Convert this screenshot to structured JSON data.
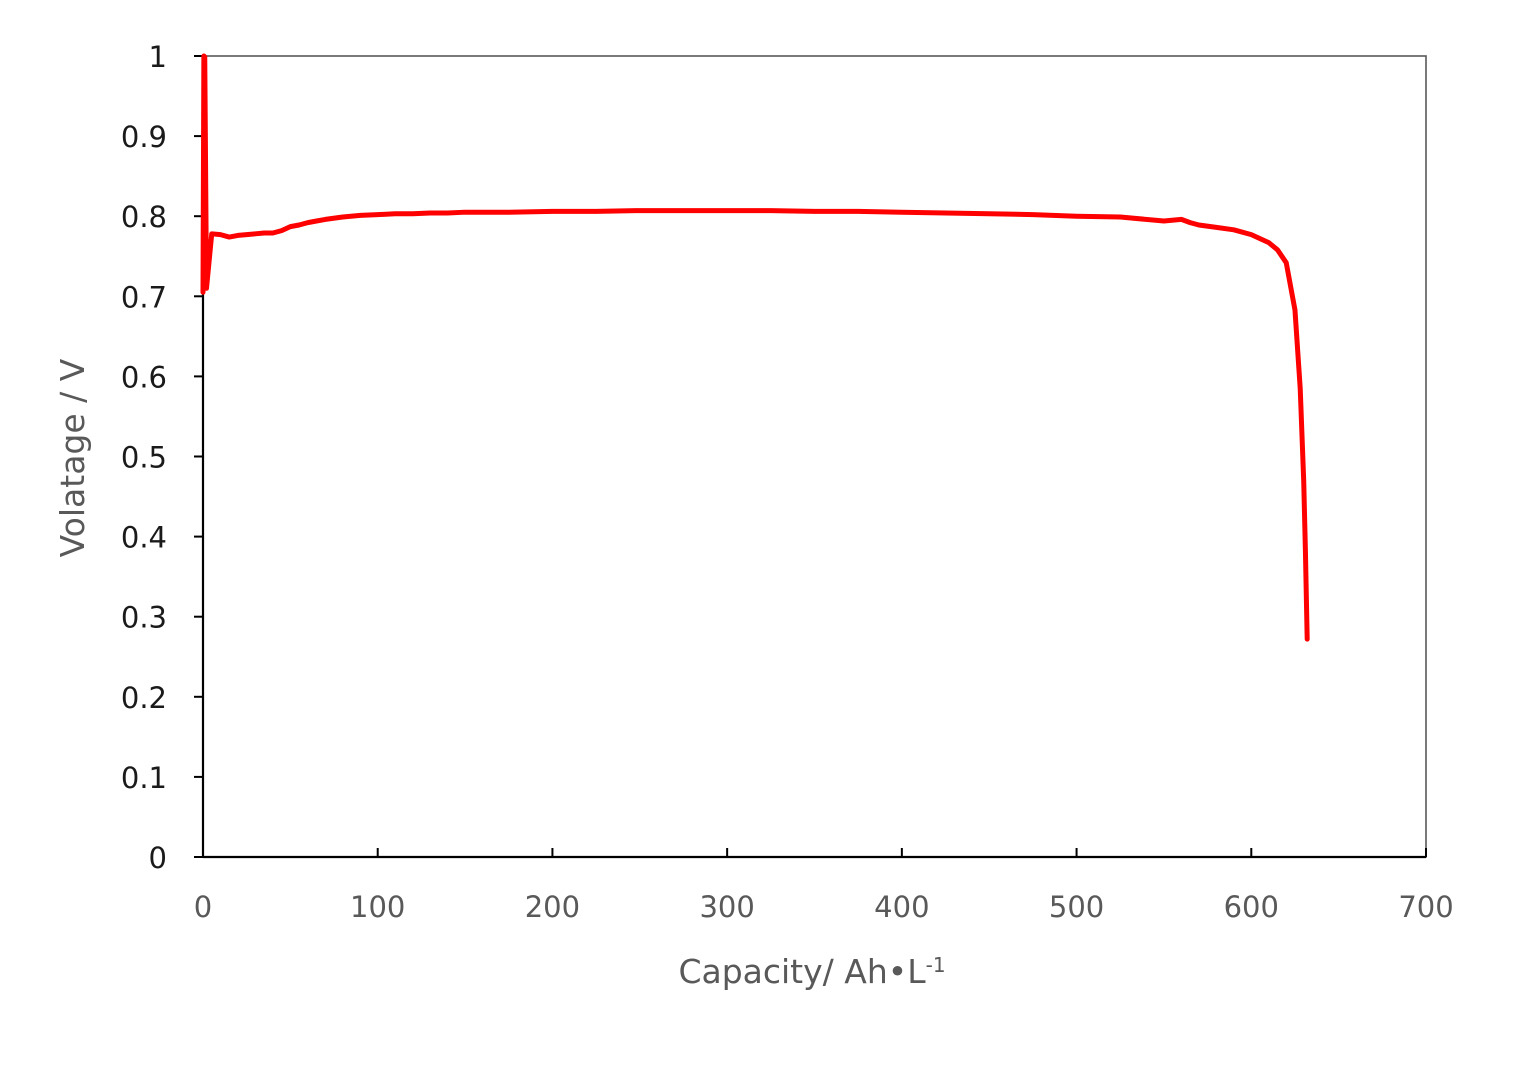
{
  "chart_data": {
    "type": "line",
    "title": "",
    "xlabel": "Capacity/ Ah•L",
    "xlabel_superscript": "-1",
    "ylabel": "Volatage / V",
    "xlim": [
      0,
      700
    ],
    "ylim": [
      0,
      1
    ],
    "xticks": [
      "0",
      "100",
      "200",
      "300",
      "400",
      "500",
      "600",
      "700"
    ],
    "yticks": [
      "0",
      "0.1",
      "0.2",
      "0.3",
      "0.4",
      "0.5",
      "0.6",
      "0.7",
      "0.8",
      "0.9",
      "1"
    ],
    "grid": false,
    "legend": "none",
    "series": [
      {
        "color": "#ff0000",
        "x": [
          0,
          0.5,
          1,
          2,
          5,
          10,
          15,
          20,
          25,
          30,
          35,
          40,
          45,
          50,
          55,
          60,
          65,
          70,
          80,
          90,
          100,
          110,
          120,
          130,
          140,
          150,
          175,
          200,
          225,
          250,
          275,
          300,
          325,
          350,
          375,
          400,
          425,
          450,
          475,
          500,
          525,
          550,
          560,
          565,
          570,
          580,
          590,
          600,
          605,
          610,
          615,
          620,
          625,
          628,
          630,
          631,
          632
        ],
        "y": [
          0.705,
          1.0,
          0.999,
          0.71,
          0.778,
          0.777,
          0.774,
          0.776,
          0.777,
          0.778,
          0.779,
          0.779,
          0.782,
          0.787,
          0.789,
          0.792,
          0.794,
          0.796,
          0.799,
          0.801,
          0.802,
          0.803,
          0.803,
          0.804,
          0.804,
          0.805,
          0.805,
          0.806,
          0.806,
          0.807,
          0.807,
          0.807,
          0.807,
          0.806,
          0.806,
          0.805,
          0.804,
          0.803,
          0.802,
          0.8,
          0.799,
          0.794,
          0.796,
          0.792,
          0.789,
          0.786,
          0.783,
          0.777,
          0.772,
          0.767,
          0.758,
          0.742,
          0.683,
          0.585,
          0.47,
          0.38,
          0.272
        ]
      }
    ]
  }
}
